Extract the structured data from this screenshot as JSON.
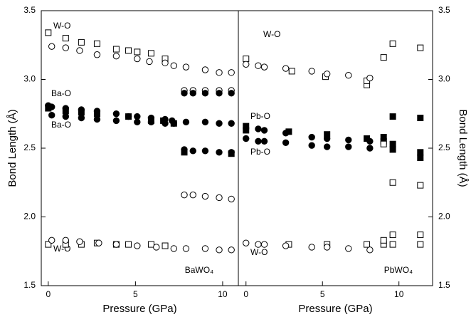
{
  "chart_data": [
    {
      "type": "scatter",
      "xlabel": "Pressure (GPa)",
      "ylabel": "Bond Length (Å)",
      "panel_label": "BaWO₄",
      "annotations": [
        "W-O",
        "Ba-O",
        "Ba-O",
        "W-O"
      ],
      "xlim": [
        -0.4,
        10.9
      ],
      "xticks": [
        0,
        5,
        10
      ],
      "ylim": [
        1.5,
        3.5
      ],
      "yticks": [
        1.5,
        {
          "value": 2,
          "label": "2.0"
        },
        2.5,
        {
          "value": 3,
          "label": "3.0"
        },
        3.5
      ],
      "series": [
        {
          "marker": "square",
          "filled": false,
          "color": "#000000",
          "x": [
            0,
            1,
            1.9,
            2.8,
            3.9,
            4.6,
            5.1,
            5.9,
            6.7
          ],
          "y": [
            3.34,
            3.3,
            3.27,
            3.26,
            3.22,
            3.21,
            3.2,
            3.19,
            3.15
          ]
        },
        {
          "marker": "circle",
          "filled": false,
          "color": "#000000",
          "x": [
            0.2,
            1,
            1.8,
            2.8,
            3.9,
            5.1,
            5.8,
            6.7,
            7.2,
            7.9,
            9,
            9.8,
            10.5
          ],
          "y": [
            3.24,
            3.23,
            3.21,
            3.18,
            3.17,
            3.15,
            3.13,
            3.12,
            3.1,
            3.09,
            3.07,
            3.05,
            3.05
          ]
        },
        {
          "marker": "circle",
          "filled": false,
          "color": "#000000",
          "x": [
            7.8,
            8.3,
            9,
            9.8,
            10.5
          ],
          "y": [
            2.92,
            2.92,
            2.92,
            2.92,
            2.92
          ]
        },
        {
          "marker": "circle",
          "filled": true,
          "color": "#000000",
          "x": [
            0,
            0.2,
            1,
            1.9,
            2.8,
            3.9,
            4.6,
            5.1,
            5.9,
            6.7,
            7.1,
            7.8,
            8.3,
            9,
            9.8,
            10.5
          ],
          "y": [
            2.81,
            2.8,
            2.79,
            2.78,
            2.77,
            2.75,
            2.73,
            2.73,
            2.72,
            2.71,
            2.7,
            2.9,
            2.9,
            2.9,
            2.9,
            2.9
          ]
        },
        {
          "marker": "circle",
          "filled": true,
          "color": "#000000",
          "x": [
            0.2,
            1,
            1.9,
            2.8,
            3.9,
            5.1,
            5.9,
            6.7,
            7.2,
            7.9,
            9,
            9.8,
            10.5
          ],
          "y": [
            2.74,
            2.73,
            2.72,
            2.71,
            2.7,
            2.69,
            2.69,
            2.68,
            2.68,
            2.69,
            2.69,
            2.68,
            2.68
          ]
        },
        {
          "marker": "square",
          "filled": true,
          "color": "#000000",
          "x": [
            0,
            1,
            1.9,
            2.8,
            4.6,
            5.9,
            6.6,
            7.2,
            7.8,
            10.5
          ],
          "y": [
            2.79,
            2.77,
            2.76,
            2.75,
            2.73,
            2.7,
            2.7,
            2.68,
            2.47,
            2.46
          ]
        },
        {
          "marker": "circle",
          "filled": true,
          "color": "#000000",
          "x": [
            7.8,
            8.3,
            9,
            9.8,
            10.5
          ],
          "y": [
            2.49,
            2.48,
            2.48,
            2.47,
            2.47
          ]
        },
        {
          "marker": "circle",
          "filled": false,
          "color": "#000000",
          "x": [
            7.8,
            8.3,
            9,
            9.8,
            10.5
          ],
          "y": [
            2.16,
            2.16,
            2.15,
            2.14,
            2.13
          ]
        },
        {
          "marker": "square",
          "filled": false,
          "color": "#000000",
          "x": [
            0,
            1,
            1.9,
            2.8,
            3.9,
            4.6,
            5.9,
            6.7
          ],
          "y": [
            1.8,
            1.8,
            1.8,
            1.81,
            1.8,
            1.8,
            1.8,
            1.79
          ]
        },
        {
          "marker": "circle",
          "filled": false,
          "color": "#000000",
          "x": [
            0.2,
            1,
            1.8,
            2.9,
            3.9,
            5.1,
            6.2,
            7.2,
            7.9,
            9,
            9.8,
            10.5
          ],
          "y": [
            1.83,
            1.83,
            1.82,
            1.81,
            1.8,
            1.79,
            1.78,
            1.77,
            1.77,
            1.77,
            1.76,
            1.76
          ]
        }
      ]
    },
    {
      "type": "scatter",
      "xlabel": "Pressure (GPa)",
      "ylabel": "Bond Length (Å)",
      "panel_label": "PbWO₄",
      "annotations": [
        "W-O",
        "Pb-O",
        "Pb-O",
        "W-O"
      ],
      "xlim": [
        -0.5,
        12.2
      ],
      "xticks": [
        0,
        5,
        10
      ],
      "ylim": [
        1.5,
        3.5
      ],
      "yticks": [
        1.5,
        {
          "value": 2,
          "label": "2.0"
        },
        2.5,
        {
          "value": 3,
          "label": "3.0"
        },
        3.5
      ],
      "series": [
        {
          "marker": "square",
          "filled": false,
          "color": "#000000",
          "x": [
            0,
            3,
            5.2,
            7.9,
            7.9,
            9,
            9.6,
            11.4
          ],
          "y": [
            3.15,
            3.06,
            3.02,
            2.96,
            2.99,
            3.16,
            3.26,
            3.23
          ]
        },
        {
          "marker": "circle",
          "filled": false,
          "color": "#000000",
          "x": [
            0,
            0.8,
            1.2,
            2.6,
            4.3,
            5.3,
            6.7,
            8.1
          ],
          "y": [
            3.11,
            3.1,
            3.09,
            3.08,
            3.06,
            3.04,
            3.03,
            3.01
          ]
        },
        {
          "marker": "square",
          "filled": true,
          "color": "#000000",
          "x": [
            0,
            0,
            2.8,
            5.3,
            7.9,
            9,
            9,
            9.6,
            9.6,
            9.6,
            11.4,
            11.4,
            11.4
          ],
          "y": [
            2.66,
            2.63,
            2.62,
            2.6,
            2.57,
            2.58,
            2.55,
            2.73,
            2.53,
            2.49,
            2.72,
            2.47,
            2.43
          ]
        },
        {
          "marker": "circle",
          "filled": true,
          "color": "#000000",
          "x": [
            0.8,
            1.2,
            2.6,
            4.3,
            5.3,
            6.7,
            8.1
          ],
          "y": [
            2.64,
            2.63,
            2.61,
            2.58,
            2.57,
            2.56,
            2.55
          ]
        },
        {
          "marker": "circle",
          "filled": true,
          "color": "#000000",
          "x": [
            0,
            0.8,
            1.2,
            2.6,
            4.3,
            5.3,
            6.7,
            8.1
          ],
          "y": [
            2.57,
            2.55,
            2.55,
            2.54,
            2.52,
            2.51,
            2.51,
            2.5
          ]
        },
        {
          "marker": "square",
          "filled": false,
          "color": "#000000",
          "x": [
            9,
            9.6,
            11.4
          ],
          "y": [
            2.53,
            2.25,
            2.23
          ]
        },
        {
          "marker": "square",
          "filled": false,
          "color": "#000000",
          "x": [
            2.8,
            5.3,
            7.9,
            9,
            9,
            9.6,
            9.6,
            11.4,
            11.4
          ],
          "y": [
            1.8,
            1.8,
            1.8,
            1.8,
            1.83,
            1.8,
            1.87,
            1.8,
            1.87
          ]
        },
        {
          "marker": "circle",
          "filled": false,
          "color": "#000000",
          "x": [
            0,
            0.8,
            1.2,
            2.6,
            4.3,
            5.3,
            6.7,
            8.1
          ],
          "y": [
            1.81,
            1.8,
            1.8,
            1.79,
            1.78,
            1.78,
            1.77,
            1.76
          ]
        }
      ]
    }
  ]
}
